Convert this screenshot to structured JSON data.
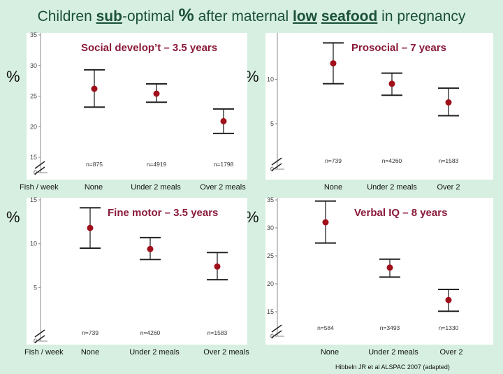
{
  "title": {
    "part1": "Children ",
    "sub": "sub",
    "part2": "-optimal ",
    "pct": "%",
    "part3": " after maternal ",
    "low": "low",
    "space": " ",
    "seafood": "seafood",
    "part4": " in pregnancy"
  },
  "axis_unit": "%",
  "fish_label": "Fish / week",
  "citation": "Hibbeln JR et al ALSPAC 2007 (adapted)",
  "colors": {
    "background": "#d6efe0",
    "panel": "#ffffff",
    "title": "#1a4f38",
    "panel_title": "#8a1a3a",
    "marker": "#a0101a",
    "errorbar": "#222222"
  },
  "chart_data": [
    {
      "type": "scatter",
      "title": "Social develop’t – 3.5 years",
      "categories": [
        "None",
        "Under 2 meals",
        "Over 2 meals"
      ],
      "values": [
        26.2,
        25.4,
        20.9
      ],
      "ci_low": [
        23.2,
        24.0,
        18.9
      ],
      "ci_high": [
        29.3,
        27.0,
        22.9
      ],
      "n_labels": [
        "n=875",
        "n=4919",
        "n=1798"
      ],
      "yticks": [
        "0",
        "15",
        "20",
        "25",
        "30",
        "35"
      ],
      "ylim": [
        15,
        35
      ],
      "axis_break": true
    },
    {
      "type": "scatter",
      "title": "Prosocial – 7 years",
      "categories": [
        "None",
        "Under 2 meals",
        "Over 2"
      ],
      "values": [
        11.8,
        9.5,
        7.4
      ],
      "ci_low": [
        9.5,
        8.2,
        5.9
      ],
      "ci_high": [
        14.1,
        10.7,
        9.0
      ],
      "n_labels": [
        "n=739",
        "n=4260",
        "n=1583"
      ],
      "yticks": [
        "0",
        "5",
        "10"
      ],
      "ylim": [
        2,
        15
      ],
      "axis_break": true
    },
    {
      "type": "scatter",
      "title": "Fine motor – 3.5 years",
      "categories": [
        "None",
        "Under 2 meals",
        "Over 2 meals"
      ],
      "values": [
        11.8,
        9.4,
        7.4
      ],
      "ci_low": [
        9.5,
        8.2,
        5.9
      ],
      "ci_high": [
        14.1,
        10.7,
        9.0
      ],
      "n_labels": [
        "n=739",
        "n=4260",
        "n=1583"
      ],
      "yticks": [
        "0",
        "5",
        "10",
        "15"
      ],
      "ylim": [
        2,
        15
      ],
      "axis_break": true
    },
    {
      "type": "scatter",
      "title": "Verbal IQ – 8 years",
      "categories": [
        "None",
        "Under 2 meals",
        "Over 2"
      ],
      "values": [
        31.0,
        22.9,
        17.1
      ],
      "ci_low": [
        27.3,
        21.2,
        15.1
      ],
      "ci_high": [
        34.8,
        24.4,
        19.0
      ],
      "n_labels": [
        "n=584",
        "n=3493",
        "n=1330"
      ],
      "yticks": [
        "0",
        "15",
        "20",
        "25",
        "30",
        "35"
      ],
      "ylim": [
        13.5,
        35
      ],
      "axis_break": true
    }
  ]
}
